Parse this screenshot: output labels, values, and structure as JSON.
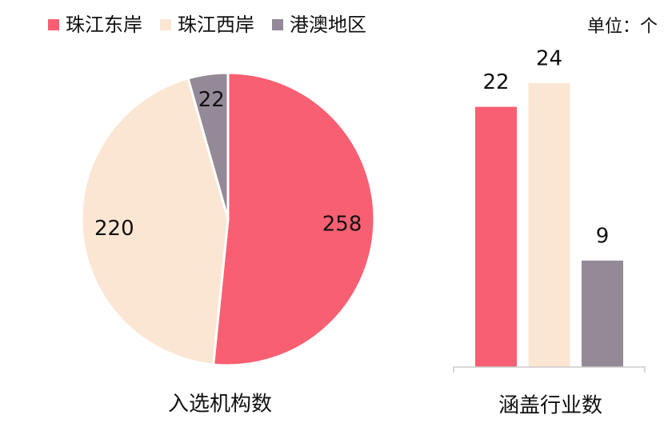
{
  "unit": "单位：个",
  "chart_data": [
    {
      "type": "pie",
      "title": "入选机构数",
      "categories": [
        "珠江东岸",
        "珠江西岸",
        "港澳地区"
      ],
      "values": [
        258,
        220,
        22
      ],
      "colors": [
        "#f95f72",
        "#fbe6d3",
        "#948a97"
      ]
    },
    {
      "type": "bar",
      "title": "涵盖行业数",
      "categories": [
        "珠江东岸",
        "珠江西岸",
        "港澳地区"
      ],
      "values": [
        22,
        24,
        9
      ],
      "colors": [
        "#f95f72",
        "#fbe6d3",
        "#948a97"
      ],
      "ylim": [
        0,
        24
      ]
    }
  ]
}
